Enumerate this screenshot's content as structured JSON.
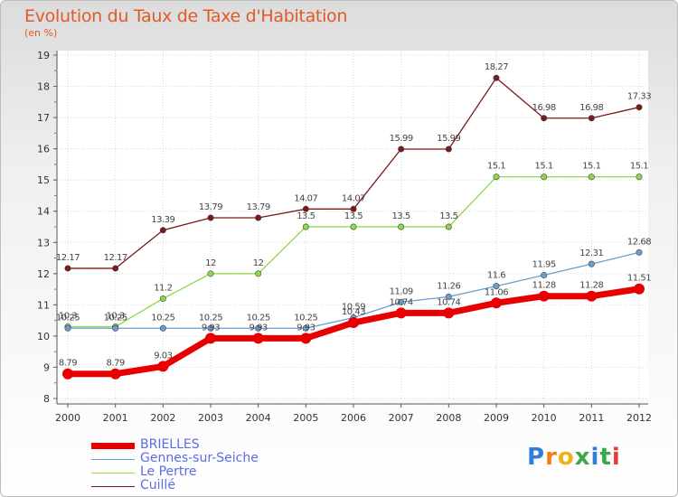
{
  "title": "Evolution du Taux de Taxe d'Habitation",
  "unit": "(en %)",
  "logo": "Proxiti",
  "chart_data": {
    "type": "line",
    "x": [
      "2000",
      "2001",
      "2002",
      "2003",
      "2004",
      "2005",
      "2006",
      "2007",
      "2008",
      "2009",
      "2010",
      "2011",
      "2012"
    ],
    "ylim": [
      8,
      19
    ],
    "yticks": [
      8,
      9,
      10,
      11,
      12,
      13,
      14,
      15,
      16,
      17,
      18,
      19
    ],
    "grid": true,
    "legend_position": "bottom-left",
    "series": [
      {
        "name": "Cuillé",
        "color": "#7a1a1a",
        "values": [
          12.17,
          12.17,
          13.39,
          13.79,
          13.79,
          14.07,
          14.07,
          15.99,
          15.99,
          18.27,
          16.98,
          16.98,
          17.33
        ],
        "labels": [
          "12.17",
          "12.17",
          "13.39",
          "13.79",
          "13.79",
          "14.07",
          "14.07",
          "15.99",
          "15.99",
          "18.27",
          "16.98",
          "16.98",
          "17.33"
        ]
      },
      {
        "name": "Le Pertre",
        "color": "#8ed84a",
        "values": [
          10.3,
          10.3,
          11.2,
          12,
          12,
          13.5,
          13.5,
          13.5,
          13.5,
          15.1,
          15.1,
          15.1,
          15.1
        ],
        "labels": [
          "10.3",
          "10.3",
          "11.2",
          "12",
          "12",
          "13.5",
          "13.5",
          "13.5",
          "13.5",
          "15.1",
          "15.1",
          "15.1",
          "15.1"
        ]
      },
      {
        "name": "Gennes-sur-Seiche",
        "color": "#6a9ed0",
        "values": [
          10.25,
          10.25,
          10.25,
          10.25,
          10.25,
          10.25,
          10.59,
          11.09,
          11.26,
          11.6,
          11.95,
          12.31,
          12.68
        ],
        "labels": [
          "10.25",
          "10.25",
          "10.25",
          "10.25",
          "10.25",
          "10.25",
          "10.59",
          "11.09",
          "11.26",
          "11.6",
          "11.95",
          "12.31",
          "12.68"
        ]
      },
      {
        "name": "BRIELLES",
        "color": "#e80000",
        "values": [
          8.79,
          8.79,
          9.03,
          9.93,
          9.93,
          9.93,
          10.43,
          10.74,
          10.74,
          11.06,
          11.28,
          11.28,
          11.51
        ],
        "labels": [
          "8.79",
          "8.79",
          "9.03",
          "9.93",
          "9.93",
          "9.93",
          "10.43",
          "10.74",
          "10.74",
          "11.06",
          "11.28",
          "11.28",
          "11.51"
        ]
      }
    ],
    "legend": [
      "BRIELLES",
      "Gennes-sur-Seiche",
      "Le Pertre",
      "Cuillé"
    ]
  }
}
